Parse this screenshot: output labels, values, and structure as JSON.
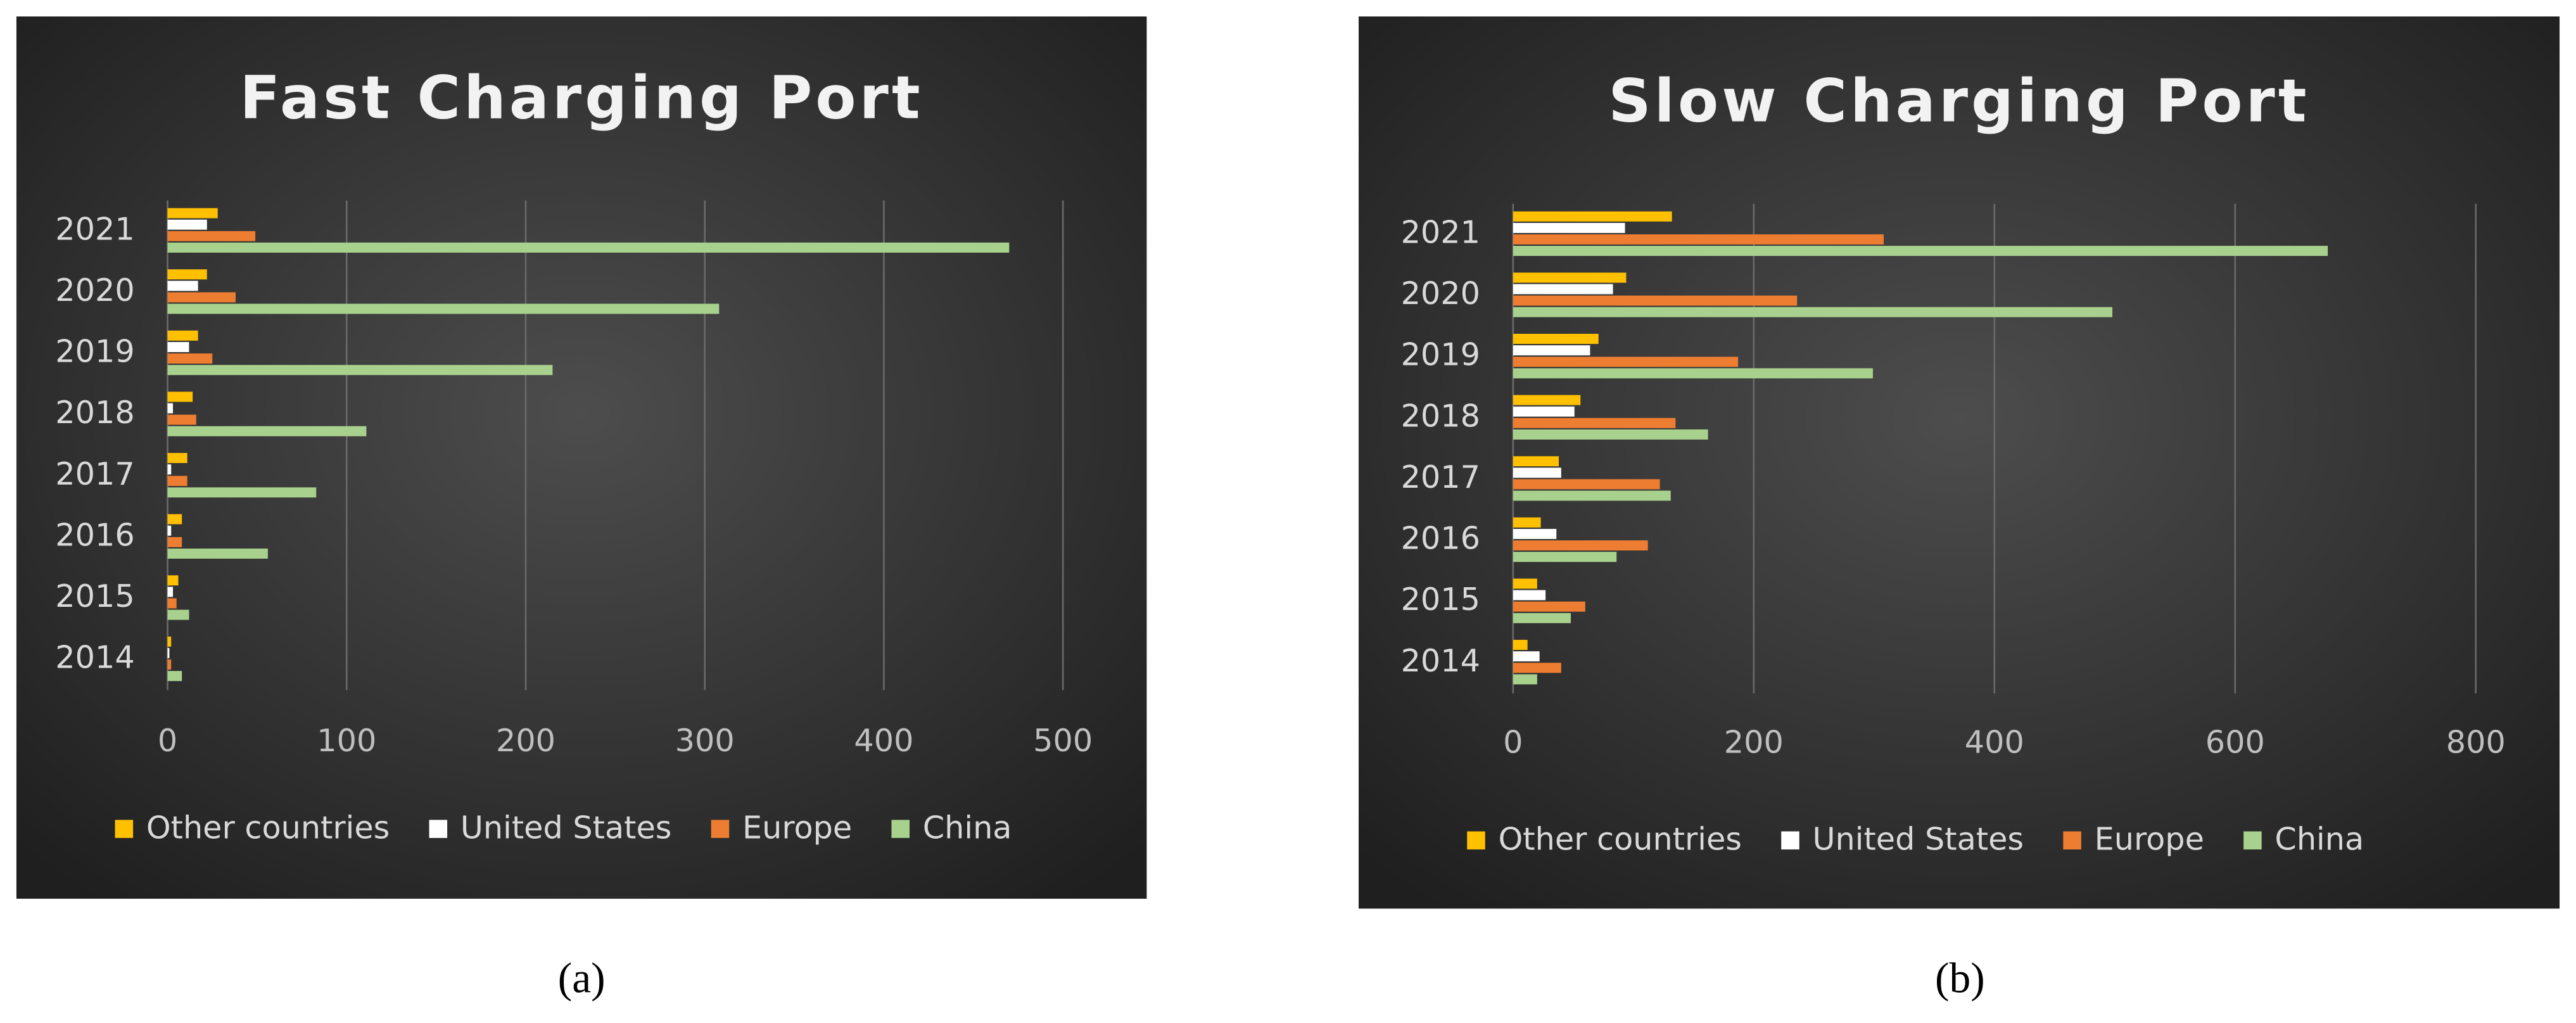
{
  "chart_data": [
    {
      "type": "bar",
      "orientation": "horizontal",
      "title": "Fast Charging Port",
      "caption": "(a)",
      "categories": [
        "2014",
        "2015",
        "2016",
        "2017",
        "2018",
        "2019",
        "2020",
        "2021"
      ],
      "series": [
        {
          "name": "Other countries",
          "color": "#ffc000",
          "values": [
            2,
            6,
            8,
            11,
            14,
            17,
            22,
            28
          ]
        },
        {
          "name": "United States",
          "color": "#ffffff",
          "values": [
            1,
            3,
            2,
            2,
            3,
            12,
            17,
            22
          ]
        },
        {
          "name": "Europe",
          "color": "#ed7d31",
          "values": [
            2,
            5,
            8,
            11,
            16,
            25,
            38,
            49
          ]
        },
        {
          "name": "China",
          "color": "#a9d18e",
          "values": [
            8,
            12,
            56,
            83,
            111,
            215,
            308,
            470
          ]
        }
      ],
      "xlim": [
        0,
        500
      ],
      "xticks": [
        0,
        100,
        200,
        300,
        400,
        500
      ],
      "grid": true,
      "legend": "bottom"
    },
    {
      "type": "bar",
      "orientation": "horizontal",
      "title": "Slow Charging Port",
      "caption": "(b)",
      "categories": [
        "2014",
        "2015",
        "2016",
        "2017",
        "2018",
        "2019",
        "2020",
        "2021"
      ],
      "series": [
        {
          "name": "Other countries",
          "color": "#ffc000",
          "values": [
            12,
            20,
            23,
            38,
            56,
            71,
            94,
            132
          ]
        },
        {
          "name": "United States",
          "color": "#ffffff",
          "values": [
            22,
            27,
            36,
            40,
            51,
            64,
            83,
            93
          ]
        },
        {
          "name": "Europe",
          "color": "#ed7d31",
          "values": [
            40,
            60,
            112,
            122,
            135,
            187,
            236,
            308
          ]
        },
        {
          "name": "China",
          "color": "#a9d18e",
          "values": [
            20,
            48,
            86,
            131,
            162,
            299,
            498,
            677
          ]
        }
      ],
      "xlim": [
        0,
        800
      ],
      "xticks": [
        0,
        200,
        400,
        600,
        800
      ],
      "grid": true,
      "legend": "bottom"
    }
  ]
}
